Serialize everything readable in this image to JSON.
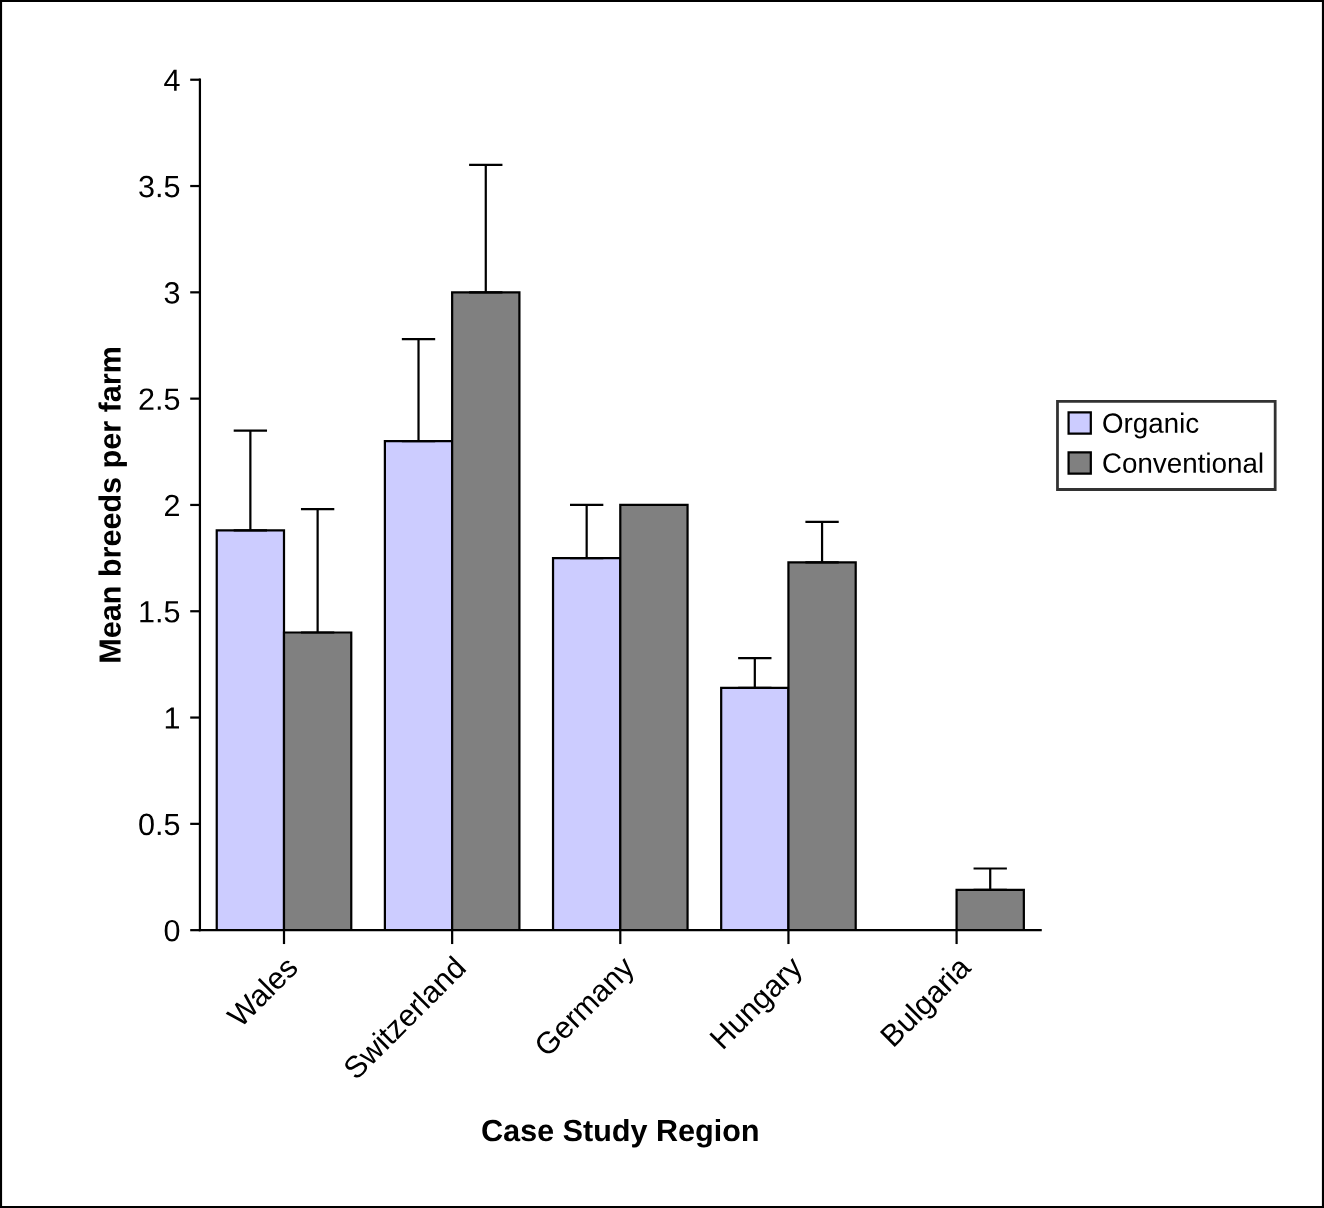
{
  "chart_data": {
    "type": "bar",
    "xlabel": "Case Study Region",
    "ylabel": "Mean breeds per farm",
    "categories": [
      "Wales",
      "Switzerland",
      "Germany",
      "Hungary",
      "Bulgaria"
    ],
    "series": [
      {
        "name": "Organic",
        "color": "#ccccff",
        "values": [
          1.88,
          2.3,
          1.75,
          1.14,
          null
        ],
        "errors": [
          [
            1.88,
            2.35
          ],
          [
            2.3,
            2.78
          ],
          [
            1.75,
            2.0
          ],
          [
            1.14,
            1.28
          ],
          null
        ]
      },
      {
        "name": "Conventional",
        "color": "#808080",
        "values": [
          1.4,
          3.0,
          2.0,
          1.73,
          0.19
        ],
        "errors": [
          [
            1.4,
            1.98
          ],
          [
            3.0,
            3.6
          ],
          null,
          [
            1.73,
            1.92
          ],
          [
            0.19,
            0.29
          ]
        ]
      }
    ],
    "ylim": [
      0,
      4
    ],
    "yticks": [
      0,
      0.5,
      1,
      1.5,
      2,
      2.5,
      3,
      3.5,
      4
    ],
    "grid": false,
    "legend": "right"
  }
}
